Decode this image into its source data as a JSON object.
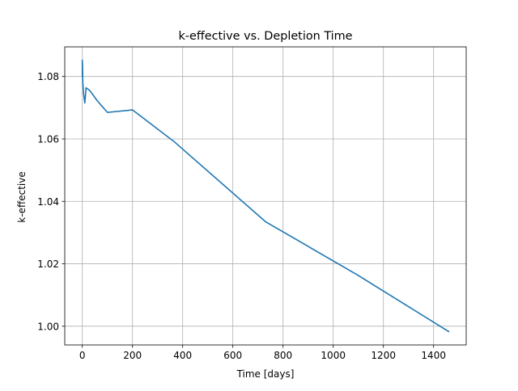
{
  "chart_data": {
    "type": "line",
    "title": "k-effective vs. Depletion Time",
    "xlabel": "Time [days]",
    "ylabel": "k-effective",
    "xlim": [
      -70,
      1530
    ],
    "ylim": [
      0.994,
      1.0895
    ],
    "xticks": [
      0,
      200,
      400,
      600,
      800,
      1000,
      1200,
      1400
    ],
    "yticks": [
      1.0,
      1.02,
      1.04,
      1.06,
      1.08
    ],
    "xtick_labels": [
      "0",
      "200",
      "400",
      "600",
      "800",
      "1000",
      "1200",
      "1400"
    ],
    "ytick_labels": [
      "1.00",
      "1.02",
      "1.04",
      "1.06",
      "1.08"
    ],
    "grid": true,
    "line_color": "#1f77b4",
    "series": [
      {
        "x": [
          0,
          0.1,
          0.5,
          1,
          2,
          5,
          10,
          15,
          30,
          60,
          100,
          200,
          365,
          730,
          1095,
          1460
        ],
        "y": [
          1.0852,
          1.08,
          1.0845,
          1.0825,
          1.078,
          1.0745,
          1.0715,
          1.0764,
          1.0755,
          1.0722,
          1.0685,
          1.0693,
          1.0592,
          1.0335,
          1.0165,
          0.9983
        ]
      }
    ]
  }
}
